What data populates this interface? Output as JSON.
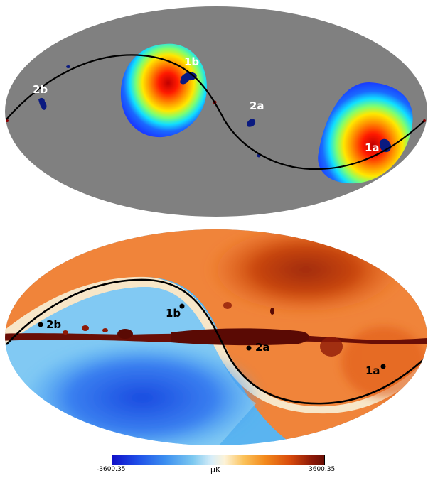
{
  "top_map": {
    "labels": {
      "p1a": "1a",
      "p1b": "1b",
      "p2a": "2a",
      "p2b": "2b"
    }
  },
  "bottom_map": {
    "labels": {
      "p1a": "1a",
      "p1b": "1b",
      "p2a": "2a",
      "p2b": "2b"
    }
  },
  "colorbar": {
    "min_label": "-3600.35",
    "max_label": "3600.35",
    "unit": "μK"
  }
}
